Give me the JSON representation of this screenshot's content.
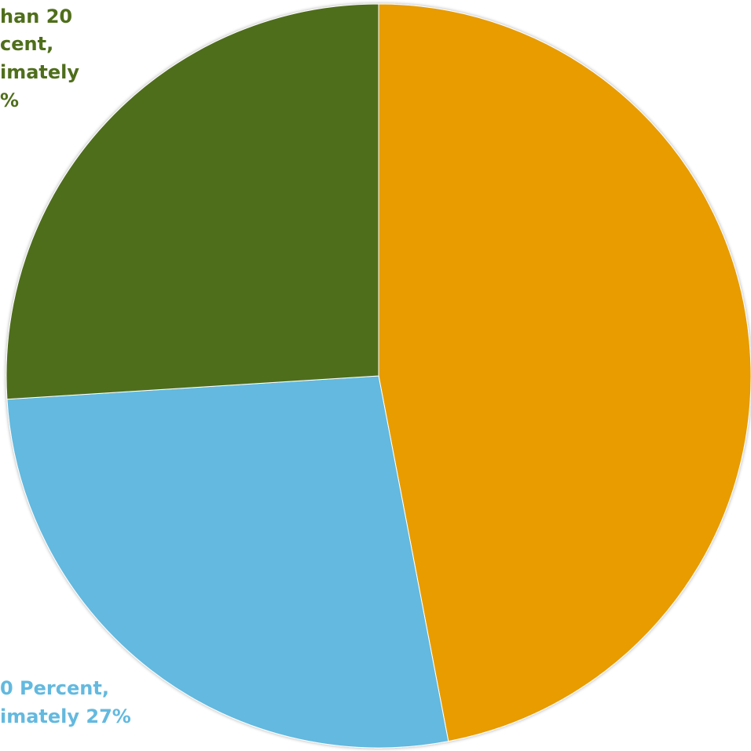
{
  "chart_data": {
    "type": "pie",
    "values": [
      47,
      27,
      26
    ],
    "colors": [
      "#e89c05",
      "#63b9df",
      "#4f6e1b"
    ],
    "data_labels": [
      null,
      [
        "0 Percent,",
        "imately 27%"
      ],
      [
        "han 20",
        "cent,",
        "imately",
        "%"
      ]
    ]
  }
}
